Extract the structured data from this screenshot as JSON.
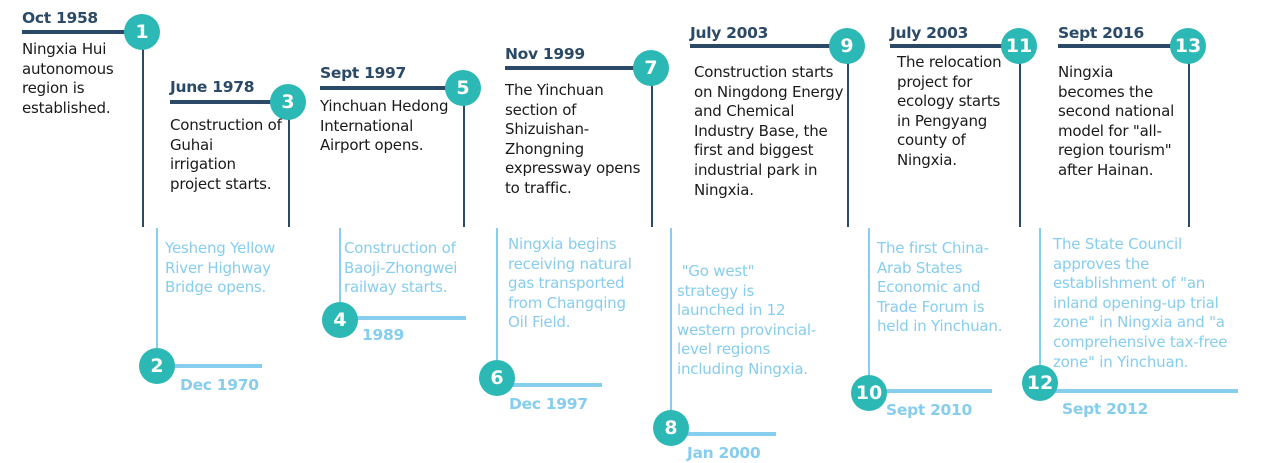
{
  "colors": {
    "dark": "#2b4a67",
    "teal": "#2cb8b4",
    "light": "#86cdee"
  },
  "events": [
    {
      "num": "1",
      "date": "Oct 1958",
      "text": "Ningxia Hui autonomous region is established."
    },
    {
      "num": "2",
      "date": "Dec 1970",
      "text": "Yesheng Yellow River Highway Bridge opens."
    },
    {
      "num": "3",
      "date": "June 1978",
      "text": "Construction of Guhai irrigation project starts."
    },
    {
      "num": "4",
      "date": "1989",
      "text": "Construction of Baoji-Zhongwei railway starts."
    },
    {
      "num": "5",
      "date": "Sept 1997",
      "text": "Yinchuan Hedong International Airport opens."
    },
    {
      "num": "6",
      "date": "Dec 1997",
      "text": "Ningxia begins receiving natural gas transported from Changqing Oil Field."
    },
    {
      "num": "7",
      "date": "Nov 1999",
      "text": "The Yinchuan section of Shizuishan-Zhongning expressway opens to traffic."
    },
    {
      "num": "8",
      "date": "Jan 2000",
      "text": " \"Go west\" strategy is launched in 12 western provincial-level regions including Ningxia."
    },
    {
      "num": "9",
      "date": "July 2003",
      "text": "Construction starts on Ningdong Energy and Chemical Industry Base, the first and biggest industrial park in Ningxia."
    },
    {
      "num": "10",
      "date": "Sept 2010",
      "text": "The first China-Arab States Economic and Trade Forum is held in Yinchuan."
    },
    {
      "num": "11",
      "date": "July 2003",
      "text": "The relocation project for ecology starts in Pengyang county of Ningxia."
    },
    {
      "num": "12",
      "date": "Sept 2012",
      "text": "The State Council approves the establishment of \"an inland opening-up trial zone\" in Ningxia and \"a comprehensive tax-free zone\" in Yinchuan."
    },
    {
      "num": "13",
      "date": "Sept 2016",
      "text": "Ningxia becomes the second national model for \"all-region tourism\" after Hainan."
    }
  ]
}
